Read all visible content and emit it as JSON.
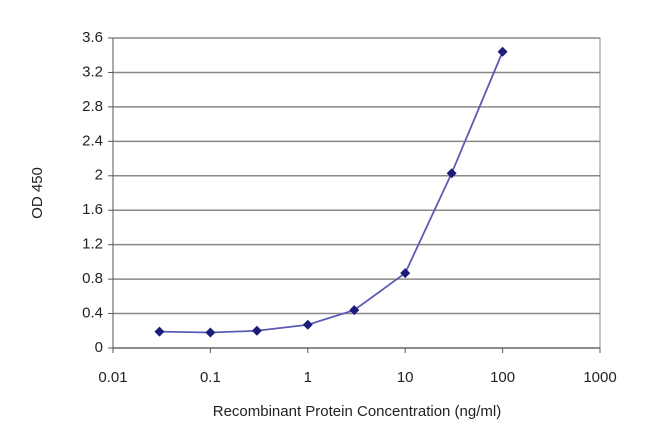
{
  "chart_data": {
    "type": "line",
    "x_label": "Recombinant Protein Concentration (ng/ml)",
    "y_label": "OD 450",
    "x": [
      0.03,
      0.1,
      0.3,
      1,
      3,
      10,
      30,
      100
    ],
    "series": [
      {
        "color": "#5b5bb5",
        "marker_color": "#1c1c7a",
        "values": [
          0.19,
          0.18,
          0.2,
          0.27,
          0.44,
          0.87,
          2.03,
          3.44
        ]
      }
    ],
    "xscale": "log",
    "xlim": [
      0.01,
      1000
    ],
    "xticks": [
      0.01,
      0.1,
      1,
      10,
      100,
      1000
    ],
    "ylim": [
      0,
      3.6
    ],
    "yticks": [
      0,
      0.4,
      0.8,
      1.2,
      1.6,
      2,
      2.4,
      2.8,
      3.2,
      3.6
    ],
    "grid": true
  }
}
